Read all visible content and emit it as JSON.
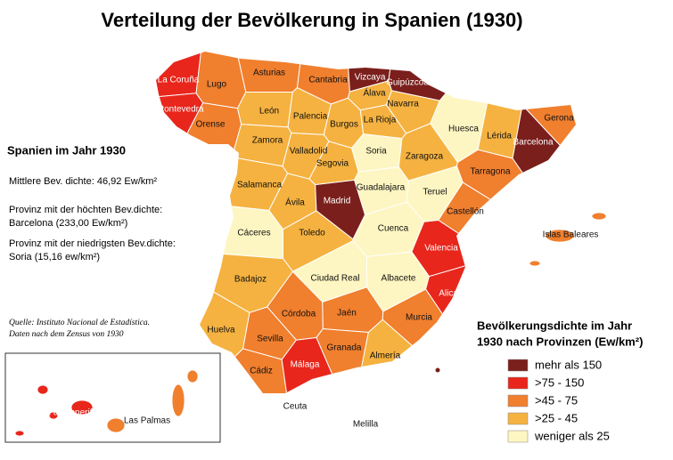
{
  "title": "Verteilung der Bevölkerung in Spanien (1930)",
  "info": {
    "heading": "Spanien im Jahr 1930",
    "lines": [
      "Mittlere Bev. dichte: 46,92 Ew/km²",
      "Provinz mit der höchten Bev.dichte:",
      "Barcelona (233,00 Ew/km²)",
      "Provinz mit der niedrigsten Bev.dichte:",
      "Soria (15,16 ew/km²)"
    ]
  },
  "source": [
    "Quelle: Instituto Nacional de Estadística.",
    "Daten nach dem Zensus von 1930"
  ],
  "legend": {
    "title": [
      "Bevölkerungsdichte im Jahr",
      "1930 nach Provinzen (Ew/km²)"
    ],
    "items": [
      {
        "label": "mehr als 150",
        "color": "#7a1f1c"
      },
      {
        "label": ">75 - 150",
        "color": "#e8261c"
      },
      {
        "label": ">45 - 75",
        "color": "#f07f2e"
      },
      {
        "label": ">25 - 45",
        "color": "#f5b240"
      },
      {
        "label": "weniger als 25",
        "color": "#fdf6c2"
      }
    ]
  },
  "provinces": [
    {
      "name": "La Coruña",
      "color": "#e8261c"
    },
    {
      "name": "Lugo",
      "color": "#f07f2e"
    },
    {
      "name": "Pontevedra",
      "color": "#e8261c"
    },
    {
      "name": "Orense",
      "color": "#f07f2e"
    },
    {
      "name": "Asturias",
      "color": "#f07f2e"
    },
    {
      "name": "Cantabria",
      "color": "#f07f2e"
    },
    {
      "name": "Vizcaya",
      "color": "#7a1f1c"
    },
    {
      "name": "Guipúzcoa",
      "color": "#7a1f1c"
    },
    {
      "name": "Álava",
      "color": "#f5b240"
    },
    {
      "name": "Navarra",
      "color": "#f5b240"
    },
    {
      "name": "León",
      "color": "#f5b240"
    },
    {
      "name": "Palencia",
      "color": "#f5b240"
    },
    {
      "name": "Burgos",
      "color": "#f5b240"
    },
    {
      "name": "La Rioja",
      "color": "#f5b240"
    },
    {
      "name": "Huesca",
      "color": "#fdf6c2"
    },
    {
      "name": "Lérida",
      "color": "#f5b240"
    },
    {
      "name": "Gerona",
      "color": "#f07f2e"
    },
    {
      "name": "Barcelona",
      "color": "#7a1f1c"
    },
    {
      "name": "Zamora",
      "color": "#f5b240"
    },
    {
      "name": "Valladolid",
      "color": "#f5b240"
    },
    {
      "name": "Soria",
      "color": "#fdf6c2"
    },
    {
      "name": "Zaragoza",
      "color": "#f5b240"
    },
    {
      "name": "Tarragona",
      "color": "#f07f2e"
    },
    {
      "name": "Segovia",
      "color": "#f5b240"
    },
    {
      "name": "Salamanca",
      "color": "#f5b240"
    },
    {
      "name": "Guadalajara",
      "color": "#fdf6c2"
    },
    {
      "name": "Teruel",
      "color": "#fdf6c2"
    },
    {
      "name": "Ávila",
      "color": "#f5b240"
    },
    {
      "name": "Madrid",
      "color": "#7a1f1c"
    },
    {
      "name": "Castellón",
      "color": "#f07f2e"
    },
    {
      "name": "Cáceres",
      "color": "#fdf6c2"
    },
    {
      "name": "Toledo",
      "color": "#f5b240"
    },
    {
      "name": "Cuenca",
      "color": "#fdf6c2"
    },
    {
      "name": "Valencia",
      "color": "#e8261c"
    },
    {
      "name": "Islas Baleares",
      "color": "#f07f2e"
    },
    {
      "name": "Badajoz",
      "color": "#f5b240"
    },
    {
      "name": "Ciudad Real",
      "color": "#fdf6c2"
    },
    {
      "name": "Albacete",
      "color": "#fdf6c2"
    },
    {
      "name": "Alicante",
      "color": "#e8261c"
    },
    {
      "name": "Córdoba",
      "color": "#f07f2e"
    },
    {
      "name": "Jaén",
      "color": "#f07f2e"
    },
    {
      "name": "Murcia",
      "color": "#f07f2e"
    },
    {
      "name": "Huelva",
      "color": "#f5b240"
    },
    {
      "name": "Sevilla",
      "color": "#f07f2e"
    },
    {
      "name": "Granada",
      "color": "#f07f2e"
    },
    {
      "name": "Almería",
      "color": "#f5b240"
    },
    {
      "name": "Cádiz",
      "color": "#f07f2e"
    },
    {
      "name": "Málaga",
      "color": "#e8261c"
    },
    {
      "name": "Ceuta"
    },
    {
      "name": "Melilla"
    },
    {
      "name": "Santa Cruz de Tenerife",
      "color": "#e8261c"
    },
    {
      "name": "Las Palmas",
      "color": "#f07f2e"
    }
  ]
}
